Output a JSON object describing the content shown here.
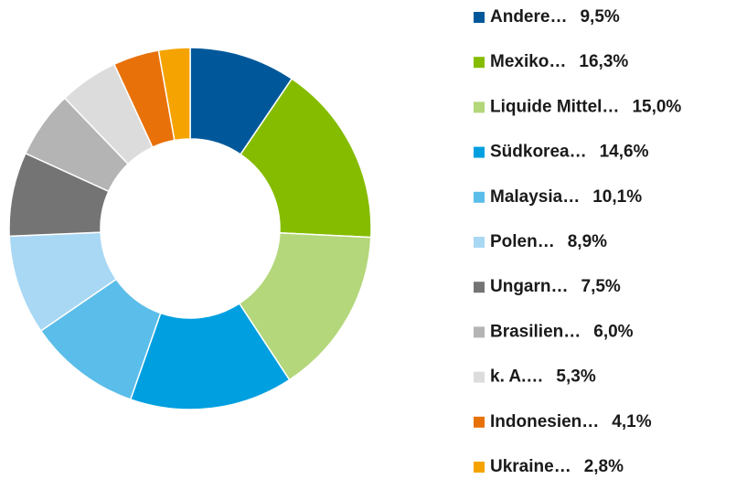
{
  "chart_data": {
    "type": "donut",
    "categories": [
      "Andere…",
      "Mexiko…",
      "Liquide Mittel…",
      "Südkorea…",
      "Malaysia…",
      "Polen…",
      "Ungarn…",
      "Brasilien…",
      "k. A.…",
      "Indonesien…",
      "Ukraine…"
    ],
    "values": [
      9.5,
      16.3,
      15.0,
      14.6,
      10.1,
      8.9,
      7.5,
      6.0,
      5.3,
      4.1,
      2.8
    ],
    "value_labels": [
      "9,5%",
      "16,3%",
      "15,0%",
      "14,6%",
      "10,1%",
      "8,9%",
      "7,5%",
      "6,0%",
      "5,3%",
      "4,1%",
      "2,8%"
    ],
    "colors": [
      "#00589a",
      "#85bc00",
      "#b3d77a",
      "#009fe0",
      "#5bbde9",
      "#a9d8f4",
      "#747474",
      "#b4b4b4",
      "#dcdcdc",
      "#e8710a",
      "#f5a300"
    ],
    "legend": "right"
  }
}
